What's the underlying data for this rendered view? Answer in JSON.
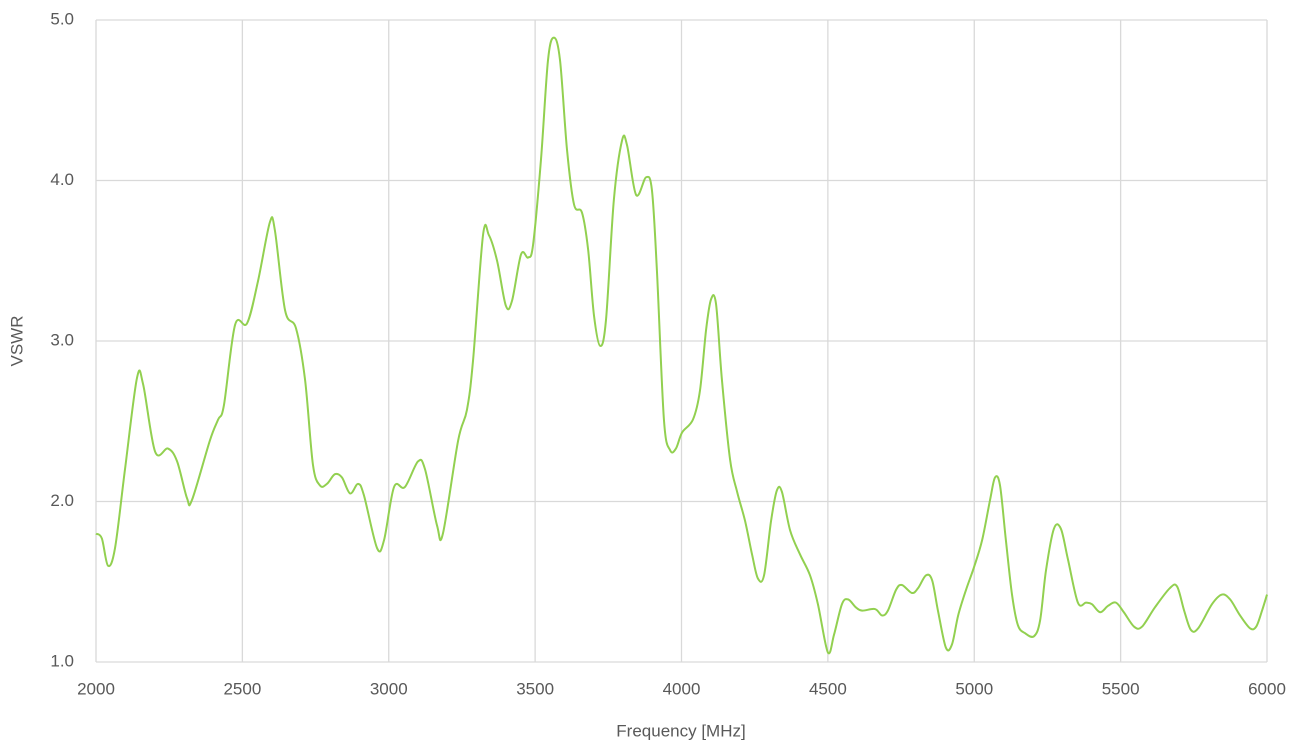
{
  "chart_data": {
    "type": "line",
    "xlabel": "Frequency [MHz]",
    "ylabel": "VSWR",
    "xlim": [
      2000,
      6000
    ],
    "xticks": [
      2000,
      2500,
      3000,
      3500,
      4000,
      4500,
      5000,
      5500,
      6000
    ],
    "ylim": [
      1,
      5
    ],
    "yticks": [
      {
        "value": 1,
        "label": "1.0"
      },
      {
        "value": 2,
        "label": "2.0"
      },
      {
        "value": 3,
        "label": "3.0"
      },
      {
        "value": 4,
        "label": "4.0"
      },
      {
        "value": 5,
        "label": "5.0"
      }
    ],
    "grid": true,
    "x": [
      2000,
      2020,
      2041,
      2065,
      2099,
      2140,
      2161,
      2202,
      2246,
      2277,
      2311,
      2328,
      2389,
      2417,
      2437,
      2475,
      2516,
      2553,
      2594,
      2611,
      2646,
      2683,
      2714,
      2741,
      2765,
      2789,
      2816,
      2840,
      2868,
      2895,
      2915,
      2960,
      2984,
      3018,
      3055,
      3100,
      3124,
      3165,
      3185,
      3237,
      3267,
      3288,
      3322,
      3342,
      3370,
      3400,
      3421,
      3452,
      3476,
      3493,
      3520,
      3544,
      3564,
      3585,
      3609,
      3633,
      3660,
      3681,
      3701,
      3722,
      3742,
      3769,
      3797,
      3814,
      3845,
      3879,
      3899,
      3916,
      3940,
      3961,
      3981,
      4002,
      4039,
      4063,
      4084,
      4101,
      4118,
      4138,
      4166,
      4190,
      4217,
      4241,
      4261,
      4282,
      4306,
      4326,
      4343,
      4371,
      4405,
      4439,
      4466,
      4500,
      4521,
      4548,
      4569,
      4596,
      4617,
      4661,
      4685,
      4705,
      4733,
      4753,
      4787,
      4808,
      4835,
      4856,
      4876,
      4903,
      4924,
      4945,
      4972,
      4999,
      5027,
      5054,
      5071,
      5088,
      5108,
      5129,
      5149,
      5173,
      5204,
      5225,
      5245,
      5272,
      5296,
      5320,
      5354,
      5382,
      5402,
      5430,
      5457,
      5484,
      5511,
      5546,
      5573,
      5617,
      5668,
      5693,
      5717,
      5740,
      5765,
      5812,
      5846,
      5874,
      5908,
      5942,
      5963,
      5983,
      6000
    ],
    "series": [
      {
        "name": "VSWR",
        "color": "#92d050",
        "values": [
          1.8,
          1.77,
          1.6,
          1.71,
          2.2,
          2.77,
          2.73,
          2.31,
          2.33,
          2.25,
          2.02,
          2.01,
          2.38,
          2.51,
          2.6,
          3.1,
          3.11,
          3.37,
          3.74,
          3.69,
          3.19,
          3.08,
          2.76,
          2.23,
          2.1,
          2.11,
          2.17,
          2.15,
          2.05,
          2.11,
          2.04,
          1.71,
          1.76,
          2.09,
          2.09,
          2.25,
          2.2,
          1.85,
          1.8,
          2.38,
          2.57,
          2.88,
          3.66,
          3.66,
          3.5,
          3.22,
          3.25,
          3.54,
          3.52,
          3.6,
          4.13,
          4.75,
          4.89,
          4.75,
          4.19,
          3.85,
          3.8,
          3.57,
          3.16,
          2.97,
          3.13,
          3.88,
          4.25,
          4.22,
          3.91,
          4.02,
          3.94,
          3.44,
          2.51,
          2.32,
          2.33,
          2.43,
          2.51,
          2.69,
          3.07,
          3.26,
          3.23,
          2.76,
          2.26,
          2.06,
          1.88,
          1.67,
          1.52,
          1.54,
          1.88,
          2.07,
          2.06,
          1.82,
          1.67,
          1.54,
          1.36,
          1.06,
          1.17,
          1.36,
          1.39,
          1.34,
          1.32,
          1.33,
          1.29,
          1.32,
          1.45,
          1.48,
          1.43,
          1.46,
          1.54,
          1.51,
          1.32,
          1.09,
          1.11,
          1.29,
          1.45,
          1.59,
          1.76,
          2.01,
          2.15,
          2.1,
          1.76,
          1.42,
          1.23,
          1.18,
          1.16,
          1.26,
          1.57,
          1.83,
          1.83,
          1.64,
          1.37,
          1.37,
          1.36,
          1.31,
          1.35,
          1.37,
          1.31,
          1.22,
          1.22,
          1.34,
          1.46,
          1.47,
          1.32,
          1.2,
          1.21,
          1.36,
          1.42,
          1.39,
          1.29,
          1.21,
          1.22,
          1.32,
          1.42
        ]
      }
    ]
  }
}
